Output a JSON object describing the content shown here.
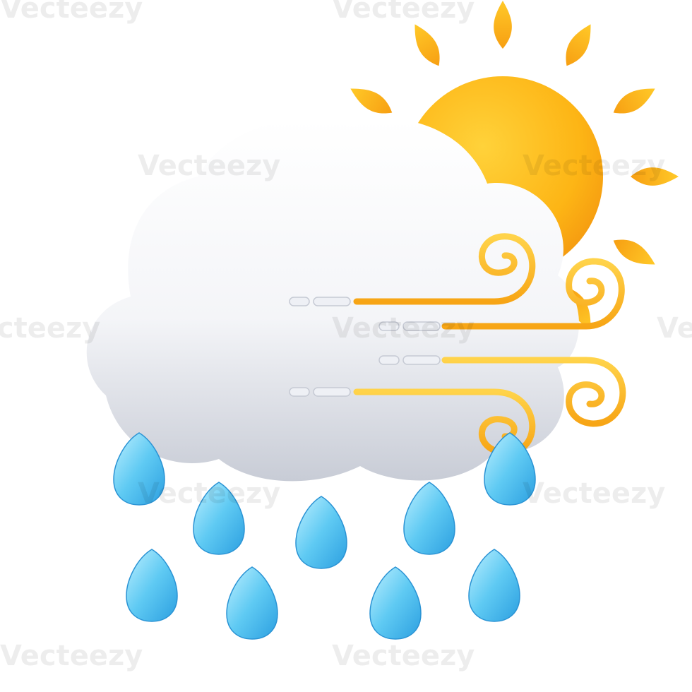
{
  "watermark": "Vecteezy"
}
